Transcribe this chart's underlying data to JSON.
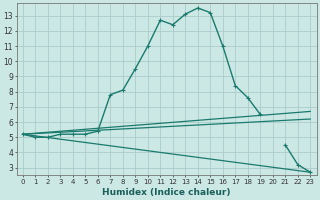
{
  "background_color": "#cce8e4",
  "grid_color": "#aaccca",
  "line_color": "#1a7a6e",
  "xlabel": "Humidex (Indice chaleur)",
  "ylim": [
    2.5,
    13.8
  ],
  "xlim": [
    -0.5,
    23.5
  ],
  "yticks": [
    3,
    4,
    5,
    6,
    7,
    8,
    9,
    10,
    11,
    12,
    13
  ],
  "xticks": [
    0,
    1,
    2,
    3,
    4,
    5,
    6,
    7,
    8,
    9,
    10,
    11,
    12,
    13,
    14,
    15,
    16,
    17,
    18,
    19,
    20,
    21,
    22,
    23
  ],
  "main_curve": {
    "x": [
      0,
      1,
      2,
      3,
      4,
      5,
      6,
      7,
      8,
      9,
      10,
      11,
      12,
      13,
      14,
      15,
      16,
      17,
      18,
      19,
      20,
      21,
      22,
      23
    ],
    "y": [
      5.2,
      5.0,
      5.0,
      5.2,
      5.2,
      5.2,
      5.4,
      7.8,
      8.1,
      9.5,
      11.0,
      12.7,
      12.4,
      13.1,
      13.5,
      13.2,
      11.0,
      8.4,
      7.6,
      6.5,
      null,
      4.5,
      3.2,
      2.7
    ]
  },
  "line1": {
    "x": [
      0,
      23
    ],
    "y": [
      5.2,
      6.7
    ]
  },
  "line2": {
    "x": [
      0,
      23
    ],
    "y": [
      5.2,
      6.2
    ]
  },
  "line3": {
    "x": [
      0,
      23
    ],
    "y": [
      5.2,
      2.7
    ]
  }
}
